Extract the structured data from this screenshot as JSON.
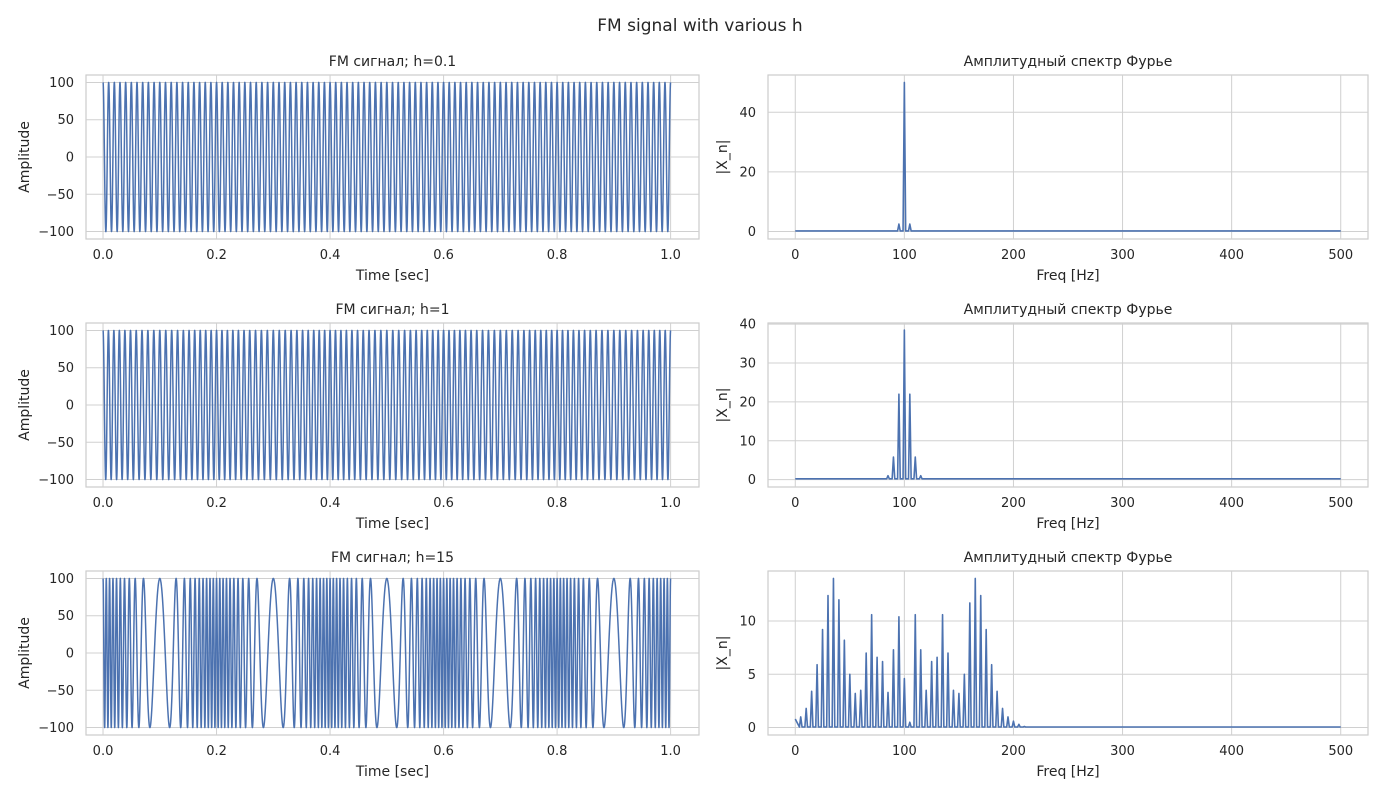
{
  "figure_title": "FM signal with various h",
  "colors": {
    "line": "#4c72b0",
    "grid": "#d0d0d0",
    "frame": "#cccccc",
    "text": "#262626",
    "background": "#ffffff"
  },
  "chart_data": [
    {
      "type": "line",
      "title": "FM сигнал; h=0.1",
      "xlabel": "Time [sec]",
      "ylabel": "Amplitude",
      "xlim": [
        -0.03,
        1.05
      ],
      "ylim": [
        -110,
        110
      ],
      "xticks": [
        0.0,
        0.2,
        0.4,
        0.6,
        0.8,
        1.0
      ],
      "xtick_labels": [
        "0.0",
        "0.2",
        "0.4",
        "0.6",
        "0.8",
        "1.0"
      ],
      "yticks": [
        -100,
        -50,
        0,
        50,
        100
      ],
      "ytick_labels": [
        "−100",
        "−50",
        "0",
        "50",
        "100"
      ],
      "grid": true,
      "signal": {
        "amplitude": 100,
        "carrier_hz": 100,
        "modulation_hz": 5,
        "h": 0.1,
        "duration_sec": 1.0
      }
    },
    {
      "type": "line",
      "title": "Амплитудный спектр Фурье",
      "xlabel": "Freq [Hz]",
      "ylabel": "|X_n|",
      "xlim": [
        -25,
        525
      ],
      "ylim": [
        -2.5,
        52.5
      ],
      "xticks": [
        0,
        100,
        200,
        300,
        400,
        500
      ],
      "xtick_labels": [
        "0",
        "100",
        "200",
        "300",
        "400",
        "500"
      ],
      "yticks": [
        0,
        20,
        40
      ],
      "ytick_labels": [
        "0",
        "20",
        "40"
      ],
      "grid": true,
      "x": [
        0,
        85,
        90,
        95,
        100,
        105,
        110,
        115,
        500
      ],
      "y": [
        0.2,
        0.2,
        0.2,
        2.5,
        50,
        2.5,
        0.2,
        0.2,
        0.2
      ]
    },
    {
      "type": "line",
      "title": "FM сигнал; h=1",
      "xlabel": "Time [sec]",
      "ylabel": "Amplitude",
      "xlim": [
        -0.03,
        1.05
      ],
      "ylim": [
        -110,
        110
      ],
      "xticks": [
        0.0,
        0.2,
        0.4,
        0.6,
        0.8,
        1.0
      ],
      "xtick_labels": [
        "0.0",
        "0.2",
        "0.4",
        "0.6",
        "0.8",
        "1.0"
      ],
      "yticks": [
        -100,
        -50,
        0,
        50,
        100
      ],
      "ytick_labels": [
        "−100",
        "−50",
        "0",
        "50",
        "100"
      ],
      "grid": true,
      "signal": {
        "amplitude": 100,
        "carrier_hz": 100,
        "modulation_hz": 5,
        "h": 1,
        "duration_sec": 1.0
      }
    },
    {
      "type": "line",
      "title": "Амплитудный спектр Фурье",
      "xlabel": "Freq [Hz]",
      "ylabel": "|X_n|",
      "xlim": [
        -25,
        525
      ],
      "ylim": [
        -1.9,
        40.3
      ],
      "xticks": [
        0,
        100,
        200,
        300,
        400,
        500
      ],
      "xtick_labels": [
        "0",
        "100",
        "200",
        "300",
        "400",
        "500"
      ],
      "yticks": [
        0,
        10,
        20,
        30,
        40
      ],
      "ytick_labels": [
        "0",
        "10",
        "20",
        "30",
        "40"
      ],
      "grid": true,
      "x": [
        0,
        80,
        85,
        90,
        95,
        100,
        105,
        110,
        115,
        120,
        500
      ],
      "y": [
        0.2,
        0.2,
        1.0,
        5.8,
        22.0,
        38.5,
        22.0,
        5.8,
        1.0,
        0.2,
        0.2
      ]
    },
    {
      "type": "line",
      "title": "FM сигнал; h=15",
      "xlabel": "Time [sec]",
      "ylabel": "Amplitude",
      "xlim": [
        -0.03,
        1.05
      ],
      "ylim": [
        -110,
        110
      ],
      "xticks": [
        0.0,
        0.2,
        0.4,
        0.6,
        0.8,
        1.0
      ],
      "xtick_labels": [
        "0.0",
        "0.2",
        "0.4",
        "0.6",
        "0.8",
        "1.0"
      ],
      "yticks": [
        -100,
        -50,
        0,
        50,
        100
      ],
      "ytick_labels": [
        "−100",
        "−50",
        "0",
        "50",
        "100"
      ],
      "grid": true,
      "signal": {
        "amplitude": 100,
        "carrier_hz": 100,
        "modulation_hz": 5,
        "h": 15,
        "duration_sec": 1.0
      }
    },
    {
      "type": "line",
      "title": "Амплитудный спектр Фурье",
      "xlabel": "Freq [Hz]",
      "ylabel": "|X_n|",
      "xlim": [
        -25,
        525
      ],
      "ylim": [
        -0.7,
        14.7
      ],
      "xticks": [
        0,
        100,
        200,
        300,
        400,
        500
      ],
      "xtick_labels": [
        "0",
        "100",
        "200",
        "300",
        "400",
        "500"
      ],
      "yticks": [
        0,
        5,
        10
      ],
      "ytick_labels": [
        "0",
        "5",
        "10"
      ],
      "grid": true,
      "x": [
        0,
        5,
        10,
        15,
        20,
        25,
        30,
        35,
        40,
        45,
        50,
        55,
        60,
        65,
        70,
        75,
        80,
        85,
        90,
        95,
        100,
        105,
        110,
        115,
        120,
        125,
        130,
        135,
        140,
        145,
        150,
        155,
        160,
        165,
        170,
        175,
        180,
        185,
        190,
        195,
        200,
        205,
        210,
        500
      ],
      "y": [
        0.8,
        1.0,
        1.8,
        3.4,
        5.9,
        9.2,
        12.4,
        14.0,
        12.0,
        8.2,
        5.0,
        3.2,
        3.5,
        7.0,
        10.6,
        6.6,
        6.2,
        3.3,
        7.3,
        10.4,
        4.6,
        0.5,
        10.6,
        7.3,
        3.5,
        6.2,
        6.6,
        10.6,
        7.0,
        3.5,
        3.2,
        5.0,
        11.7,
        14.0,
        12.4,
        9.2,
        5.9,
        3.4,
        1.8,
        1.0,
        0.6,
        0.3,
        0.1,
        0.05
      ]
    }
  ]
}
